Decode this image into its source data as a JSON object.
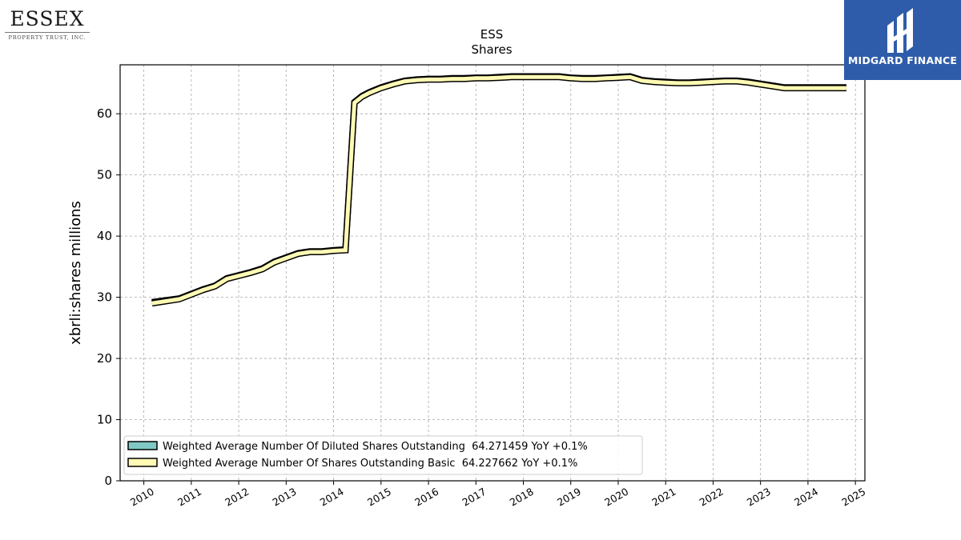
{
  "logos": {
    "left": {
      "name": "ESSEX",
      "subtitle": "PROPERTY TRUST, INC."
    },
    "right": {
      "name": "MIDGARD FINANCE",
      "background": "#2f5caa"
    }
  },
  "chart_data": {
    "type": "line",
    "title": "ESS",
    "subtitle": "Shares",
    "ylabel": "xbrli:shares millions",
    "xlabel": "",
    "xlim": [
      2009.5,
      2025.2
    ],
    "ylim": [
      0,
      68
    ],
    "xticks": [
      "2010",
      "2011",
      "2012",
      "2013",
      "2014",
      "2015",
      "2016",
      "2017",
      "2018",
      "2019",
      "2020",
      "2021",
      "2022",
      "2023",
      "2024",
      "2025"
    ],
    "yticks": [
      "0",
      "10",
      "20",
      "30",
      "40",
      "50",
      "60"
    ],
    "grid": true,
    "legend_position": "lower-left",
    "series": [
      {
        "name": "Weighted Average Number Of Diluted Shares Outstanding",
        "legend_label": "Weighted Average Number Of Diluted Shares Outstanding  64.271459 YoY +0.1%",
        "color": "#7fc8c4",
        "x": [
          2010.17,
          2010.75,
          2011.25,
          2011.5,
          2011.75,
          2012.0,
          2012.25,
          2012.5,
          2012.75,
          2013.0,
          2013.25,
          2013.5,
          2013.75,
          2014.0,
          2014.25,
          2014.44,
          2014.6,
          2014.75,
          2015.0,
          2015.25,
          2015.5,
          2015.75,
          2016.0,
          2016.25,
          2016.5,
          2016.75,
          2017.0,
          2017.25,
          2017.5,
          2017.75,
          2018.0,
          2018.25,
          2018.5,
          2018.75,
          2019.0,
          2019.25,
          2019.5,
          2019.75,
          2020.0,
          2020.25,
          2020.5,
          2020.75,
          2021.0,
          2021.25,
          2021.5,
          2021.75,
          2022.0,
          2022.25,
          2022.5,
          2022.75,
          2023.0,
          2023.25,
          2023.5,
          2023.75,
          2024.0,
          2024.25,
          2024.5,
          2024.81
        ],
        "values": [
          29.2,
          29.8,
          31.3,
          31.9,
          33.1,
          33.6,
          34.1,
          34.7,
          35.8,
          36.5,
          37.2,
          37.5,
          37.5,
          37.7,
          37.8,
          61.9,
          62.9,
          63.5,
          64.3,
          64.9,
          65.4,
          65.6,
          65.7,
          65.7,
          65.8,
          65.8,
          65.9,
          65.9,
          66.0,
          66.1,
          66.1,
          66.1,
          66.1,
          66.1,
          65.9,
          65.8,
          65.8,
          65.9,
          66.0,
          66.1,
          65.5,
          65.3,
          65.2,
          65.1,
          65.1,
          65.2,
          65.3,
          65.4,
          65.4,
          65.2,
          64.9,
          64.6,
          64.3,
          64.3,
          64.3,
          64.3,
          64.3,
          64.3
        ]
      },
      {
        "name": "Weighted Average Number Of Shares Outstanding Basic",
        "legend_label": "Weighted Average Number Of Shares Outstanding Basic  64.227662 YoY +0.1%",
        "color": "#fffab4",
        "x": [
          2010.17,
          2010.75,
          2011.25,
          2011.5,
          2011.75,
          2012.0,
          2012.25,
          2012.5,
          2012.75,
          2013.0,
          2013.25,
          2013.5,
          2013.75,
          2014.0,
          2014.25,
          2014.44,
          2014.6,
          2014.75,
          2015.0,
          2015.25,
          2015.5,
          2015.75,
          2016.0,
          2016.25,
          2016.5,
          2016.75,
          2017.0,
          2017.25,
          2017.5,
          2017.75,
          2018.0,
          2018.25,
          2018.5,
          2018.75,
          2019.0,
          2019.25,
          2019.5,
          2019.75,
          2020.0,
          2020.25,
          2020.5,
          2020.75,
          2021.0,
          2021.25,
          2021.5,
          2021.75,
          2022.0,
          2022.25,
          2022.5,
          2022.75,
          2023.0,
          2023.25,
          2023.5,
          2023.75,
          2024.0,
          2024.25,
          2024.5,
          2024.81
        ],
        "values": [
          29.0,
          29.7,
          31.2,
          31.8,
          33.0,
          33.5,
          34.0,
          34.6,
          35.7,
          36.4,
          37.1,
          37.4,
          37.4,
          37.6,
          37.7,
          61.8,
          62.8,
          63.4,
          64.2,
          64.8,
          65.3,
          65.5,
          65.6,
          65.6,
          65.7,
          65.7,
          65.8,
          65.8,
          65.9,
          66.0,
          66.0,
          66.0,
          66.0,
          66.0,
          65.8,
          65.7,
          65.7,
          65.8,
          65.9,
          66.0,
          65.4,
          65.2,
          65.1,
          65.0,
          65.0,
          65.1,
          65.2,
          65.3,
          65.3,
          65.1,
          64.8,
          64.5,
          64.2,
          64.2,
          64.2,
          64.2,
          64.2,
          64.2
        ]
      }
    ]
  }
}
